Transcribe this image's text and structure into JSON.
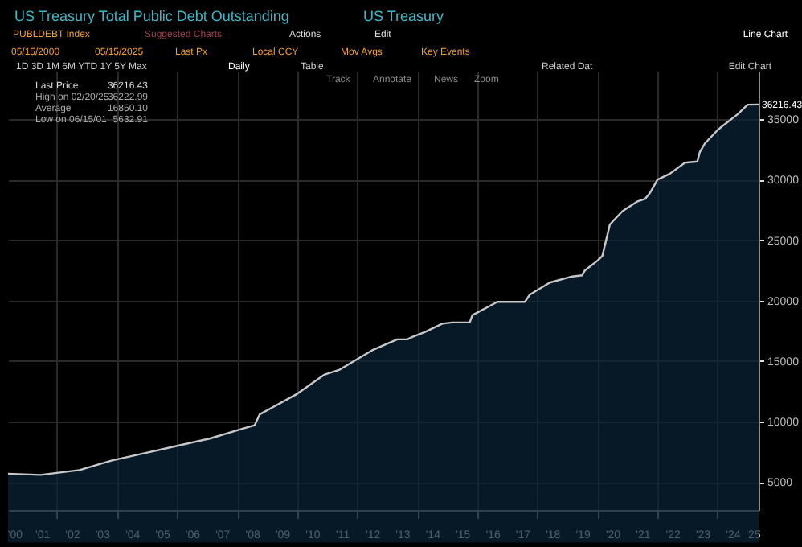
{
  "chart_data": {
    "type": "area",
    "title": "US Treasury Total Public Debt Outstanding",
    "subtitle": "US Treasury",
    "x": [
      "2000-05-15",
      "2001-06-15",
      "2002-10",
      "2003-11",
      "2004-12",
      "2006-01",
      "2007-02",
      "2008-03",
      "2008-08",
      "2008-10",
      "2010-01",
      "2010-12",
      "2011-06",
      "2012-07",
      "2013-05",
      "2013-09",
      "2013-11",
      "2014-04",
      "2014-11",
      "2015-03",
      "2015-10",
      "2015-11",
      "2016-09",
      "2017-03",
      "2017-08",
      "2017-10",
      "2018-06",
      "2019-03",
      "2019-07",
      "2019-08",
      "2020-01",
      "2020-03",
      "2020-06",
      "2020-11",
      "2021-05",
      "2021-08",
      "2021-10",
      "2022-01",
      "2022-06",
      "2022-12",
      "2023-05",
      "2023-06",
      "2023-08",
      "2024-01",
      "2024-04",
      "2024-09",
      "2025-01",
      "2025-05-15"
    ],
    "series": [
      {
        "color": "#0a2238",
        "values": [
          5700,
          5600,
          6000,
          6800,
          7400,
          8000,
          8600,
          9400,
          9700,
          10600,
          12300,
          13900,
          14300,
          15900,
          16800,
          16800,
          17000,
          17400,
          18100,
          18200,
          18200,
          18800,
          19900,
          19900,
          19900,
          20500,
          21500,
          22000,
          22100,
          22500,
          23300,
          23700,
          26300,
          27400,
          28200,
          28400,
          28900,
          30000,
          30500,
          31400,
          31500,
          32300,
          33000,
          34100,
          34600,
          35400,
          36200,
          36216.43
        ]
      }
    ],
    "xlim": [
      "2000-05-15",
      "2025-05-15"
    ],
    "xticks": [
      {
        "value": "2000-08-01",
        "label": "'00"
      },
      {
        "value": "2001-07-01",
        "label": "'01"
      },
      {
        "value": "2002-01-01",
        "label": null
      },
      {
        "value": "2002-07-01",
        "label": "'02"
      },
      {
        "value": "2003-07-01",
        "label": "'03"
      },
      {
        "value": "2004-01-01",
        "label": null
      },
      {
        "value": "2004-07-01",
        "label": "'04"
      },
      {
        "value": "2005-07-01",
        "label": "'05"
      },
      {
        "value": "2006-01-01",
        "label": null
      },
      {
        "value": "2006-07-01",
        "label": "'06"
      },
      {
        "value": "2007-07-01",
        "label": "'07"
      },
      {
        "value": "2008-01-01",
        "label": null
      },
      {
        "value": "2008-07-01",
        "label": "'08"
      },
      {
        "value": "2009-07-01",
        "label": "'09"
      },
      {
        "value": "2010-01-01",
        "label": null
      },
      {
        "value": "2010-07-01",
        "label": "'10"
      },
      {
        "value": "2011-07-01",
        "label": "'11"
      },
      {
        "value": "2012-01-01",
        "label": null
      },
      {
        "value": "2012-07-01",
        "label": "'12"
      },
      {
        "value": "2013-07-01",
        "label": "'13"
      },
      {
        "value": "2014-01-01",
        "label": null
      },
      {
        "value": "2014-07-01",
        "label": "'14"
      },
      {
        "value": "2015-07-01",
        "label": "'15"
      },
      {
        "value": "2016-01-01",
        "label": null
      },
      {
        "value": "2016-07-01",
        "label": "'16"
      },
      {
        "value": "2017-07-01",
        "label": "'17"
      },
      {
        "value": "2018-01-01",
        "label": null
      },
      {
        "value": "2018-07-01",
        "label": "'18"
      },
      {
        "value": "2019-07-01",
        "label": "'19"
      },
      {
        "value": "2020-01-01",
        "label": null
      },
      {
        "value": "2020-07-01",
        "label": "'20"
      },
      {
        "value": "2021-07-01",
        "label": "'21"
      },
      {
        "value": "2022-01-01",
        "label": null
      },
      {
        "value": "2022-07-01",
        "label": "'22"
      },
      {
        "value": "2023-07-01",
        "label": "'23"
      },
      {
        "value": "2024-01-01",
        "label": null
      },
      {
        "value": "2024-07-01",
        "label": "'24"
      },
      {
        "value": "2025-03-01",
        "label": "'25"
      }
    ],
    "ylim": [
      2700,
      39000
    ],
    "yticks": [
      5000,
      10000,
      15000,
      20000,
      25000,
      30000,
      35000
    ],
    "grid": true,
    "annotations": [
      "PUBLDEBT Index",
      "Suggested Charts",
      "Actions",
      "Edit",
      "Line Chart",
      "05/15/2000",
      "05/15/2025",
      "Last Px",
      "Local CCY",
      "Mov Avgs",
      "Key Events",
      "1D  3D  1M  6M  YTD  1Y  5Y  Max",
      "Daily",
      "Table",
      "Related Dat",
      "Edit Chart",
      "Track",
      "Annotate",
      "News",
      "Zoom",
      "Last Price",
      "36216.43",
      "High on 02/20/25",
      "36222.99",
      "Average",
      "16850.10",
      "Low on 06/15/01",
      "5632.91",
      {
        "text": "36216.43",
        "x": "2025-05-15",
        "y": 36216.43
      }
    ]
  }
}
